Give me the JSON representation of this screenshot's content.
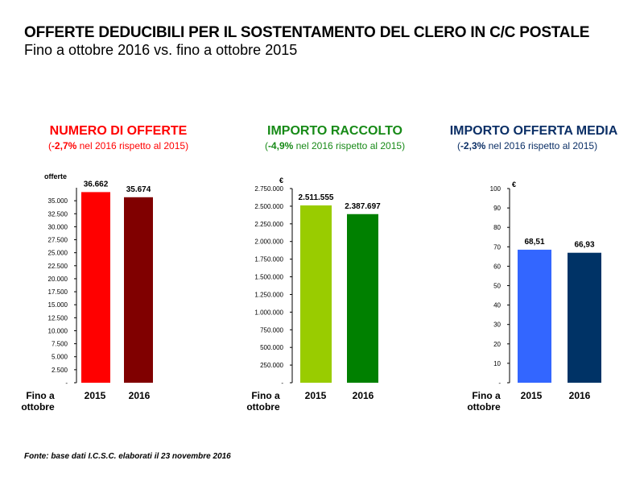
{
  "header": {
    "title": "OFFERTE DEDUCIBILI PER IL SOSTENTAMENTO DEL CLERO IN C/C POSTALE",
    "subtitle": "Fino a ottobre 2016 vs. fino a ottobre 2015"
  },
  "panels": [
    {
      "title": "NUMERO DI OFFERTE",
      "open": "(",
      "change": "-2,7%",
      "rest": " nel 2016 rispetto al 2015)",
      "color": "#ff0000"
    },
    {
      "title": "IMPORTO RACCOLTO",
      "open": "(",
      "change": "-4,9%",
      "rest": " nel 2016 rispetto al 2015)",
      "color": "#178a17"
    },
    {
      "title": "IMPORTO OFFERTA MEDIA",
      "open": "(",
      "change": "-2,3%",
      "rest": " nel 2016 rispetto al 2015)",
      "color": "#0b2f66"
    }
  ],
  "source": "Fonte: base dati I.C.S.C. elaborati il 23 novembre 2016",
  "chart_data": [
    {
      "type": "bar",
      "title": "NUMERO DI OFFERTE",
      "ylabel": "offerte",
      "xlabel": "Fino a ottobre",
      "categories": [
        "2015",
        "2016"
      ],
      "values": [
        36662,
        35674
      ],
      "value_labels": [
        "36.662",
        "35.674"
      ],
      "colors": [
        "#ff0000",
        "#800000"
      ],
      "ylim": [
        0,
        37500
      ],
      "ticks": [
        0,
        2500,
        5000,
        7500,
        10000,
        12500,
        15000,
        17500,
        20000,
        22500,
        25000,
        27500,
        30000,
        32500,
        35000
      ],
      "tick_labels": [
        "-",
        "2.500",
        "5.000",
        "7.500",
        "10.000",
        "12.500",
        "15.000",
        "17.500",
        "20.000",
        "22.500",
        "25.000",
        "27.500",
        "30.000",
        "32.500",
        "35.000"
      ]
    },
    {
      "type": "bar",
      "title": "IMPORTO RACCOLTO",
      "ylabel": "€",
      "xlabel": "Fino a ottobre",
      "categories": [
        "2015",
        "2016"
      ],
      "values": [
        2511555,
        2387697
      ],
      "value_labels": [
        "2.511.555",
        "2.387.697"
      ],
      "colors": [
        "#99cc00",
        "#008000"
      ],
      "ylim": [
        0,
        2750000
      ],
      "ticks": [
        0,
        250000,
        500000,
        750000,
        1000000,
        1250000,
        1500000,
        1750000,
        2000000,
        2250000,
        2500000,
        2750000
      ],
      "tick_labels": [
        "-",
        "250.000",
        "500.000",
        "750.000",
        "1.000.000",
        "1.250.000",
        "1.500.000",
        "1.750.000",
        "2.000.000",
        "2.250.000",
        "2.500.000",
        "2.750.000"
      ]
    },
    {
      "type": "bar",
      "title": "IMPORTO OFFERTA MEDIA",
      "ylabel": "€",
      "xlabel": "Fino a ottobre",
      "categories": [
        "2015",
        "2016"
      ],
      "values": [
        68.51,
        66.93
      ],
      "value_labels": [
        "68,51",
        "66,93"
      ],
      "colors": [
        "#3366ff",
        "#003366"
      ],
      "ylim": [
        0,
        100
      ],
      "ticks": [
        0,
        10,
        20,
        30,
        40,
        50,
        60,
        70,
        80,
        90,
        100
      ],
      "tick_labels": [
        "-",
        "10",
        "20",
        "30",
        "40",
        "50",
        "60",
        "70",
        "80",
        "90",
        "100"
      ]
    }
  ]
}
